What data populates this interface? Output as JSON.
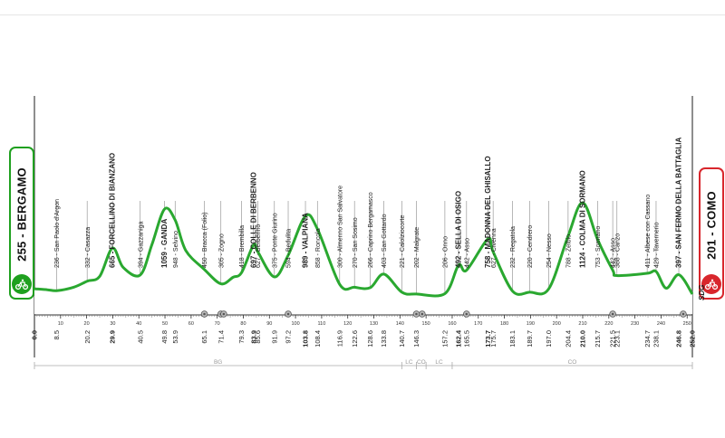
{
  "start": {
    "label": "255 - BERGAMO",
    "icon": "cyclist-icon",
    "color": "#1fa01f"
  },
  "finish": {
    "label": "201 - COMO",
    "icon": "cyclist-icon",
    "color": "#d8262c"
  },
  "brand": "SDG",
  "chart_data": {
    "type": "area",
    "xlim": [
      0,
      252
    ],
    "x_ticks": [
      10,
      20,
      30,
      40,
      50,
      60,
      70,
      80,
      90,
      100,
      110,
      120,
      130,
      140,
      150,
      160,
      170,
      180,
      190,
      200,
      210,
      220,
      230,
      240,
      250
    ],
    "profile": [
      [
        0,
        255
      ],
      [
        5,
        245
      ],
      [
        8.5,
        236
      ],
      [
        15,
        270
      ],
      [
        20.2,
        332
      ],
      [
        25,
        380
      ],
      [
        29.9,
        665
      ],
      [
        34,
        470
      ],
      [
        40.5,
        394
      ],
      [
        45,
        700
      ],
      [
        49.8,
        1059
      ],
      [
        53.9,
        948
      ],
      [
        58,
        640
      ],
      [
        65.1,
        450
      ],
      [
        71.4,
        305
      ],
      [
        76,
        370
      ],
      [
        79.3,
        418
      ],
      [
        83.9,
        697
      ],
      [
        85.6,
        627
      ],
      [
        91.9,
        375
      ],
      [
        97.2,
        594
      ],
      [
        103.8,
        989
      ],
      [
        108.4,
        858
      ],
      [
        116.9,
        300
      ],
      [
        122.6,
        270
      ],
      [
        128.6,
        266
      ],
      [
        133.8,
        403
      ],
      [
        140.7,
        221
      ],
      [
        146.3,
        202
      ],
      [
        157.2,
        206
      ],
      [
        162.4,
        492
      ],
      [
        165.5,
        442
      ],
      [
        173.7,
        758
      ],
      [
        175.7,
        627
      ],
      [
        183.1,
        232
      ],
      [
        189.7,
        220
      ],
      [
        197.0,
        254
      ],
      [
        204.4,
        788
      ],
      [
        210.0,
        1124
      ],
      [
        215.7,
        753
      ],
      [
        221.5,
        442
      ],
      [
        223.1,
        388
      ],
      [
        234.7,
        411
      ],
      [
        238.1,
        429
      ],
      [
        242,
        260
      ],
      [
        246.8,
        397
      ],
      [
        252.0,
        201
      ]
    ],
    "km_labels": [
      {
        "km": "0.0",
        "x": 0,
        "bold": true
      },
      {
        "km": "8.5",
        "x": 8.5
      },
      {
        "km": "20.2",
        "x": 20.2
      },
      {
        "km": "29.9",
        "x": 29.9,
        "bold": true
      },
      {
        "km": "40.5",
        "x": 40.5
      },
      {
        "km": "49.8",
        "x": 49.8
      },
      {
        "km": "53.9",
        "x": 53.9
      },
      {
        "km": "65.1",
        "x": 65.1
      },
      {
        "km": "71.4",
        "x": 71.4
      },
      {
        "km": "79.3",
        "x": 79.3
      },
      {
        "km": "83.9",
        "x": 83.9,
        "bold": true
      },
      {
        "km": "85.6",
        "x": 85.6
      },
      {
        "km": "91.9",
        "x": 91.9
      },
      {
        "km": "97.2",
        "x": 97.2
      },
      {
        "km": "103.8",
        "x": 103.8,
        "bold": true
      },
      {
        "km": "108.4",
        "x": 108.4
      },
      {
        "km": "116.9",
        "x": 116.9
      },
      {
        "km": "122.6",
        "x": 122.6
      },
      {
        "km": "128.6",
        "x": 128.6
      },
      {
        "km": "133.8",
        "x": 133.8
      },
      {
        "km": "140.7",
        "x": 140.7
      },
      {
        "km": "146.3",
        "x": 146.3
      },
      {
        "km": "157.2",
        "x": 157.2
      },
      {
        "km": "162.4",
        "x": 162.4,
        "bold": true
      },
      {
        "km": "165.5",
        "x": 165.5
      },
      {
        "km": "173.7",
        "x": 173.7,
        "bold": true
      },
      {
        "km": "175.7",
        "x": 175.7
      },
      {
        "km": "183.1",
        "x": 183.1
      },
      {
        "km": "189.7",
        "x": 189.7
      },
      {
        "km": "197.0",
        "x": 197.0
      },
      {
        "km": "204.4",
        "x": 204.4
      },
      {
        "km": "210.0",
        "x": 210.0,
        "bold": true
      },
      {
        "km": "215.7",
        "x": 215.7
      },
      {
        "km": "221.5",
        "x": 221.5
      },
      {
        "km": "223.1",
        "x": 223.1
      },
      {
        "km": "234.7",
        "x": 234.7
      },
      {
        "km": "238.1",
        "x": 238.1
      },
      {
        "km": "246.8",
        "x": 246.8,
        "bold": true
      },
      {
        "km": "252.0",
        "x": 252.0,
        "bold": true
      }
    ],
    "waypoints": [
      {
        "x": 8.5,
        "text": "236 - San Paolo d'Argon",
        "bold": false
      },
      {
        "x": 20.2,
        "text": "332 - Casazza",
        "bold": false
      },
      {
        "x": 29.9,
        "text": "665 - FORCELLINO DI BIANZANO",
        "bold": true
      },
      {
        "x": 40.5,
        "text": "394 - Gazzaniga",
        "bold": false
      },
      {
        "x": 49.8,
        "text": "1059 - GANDA",
        "bold": true
      },
      {
        "x": 53.9,
        "text": "948 - Selvino",
        "bold": false
      },
      {
        "x": 65.1,
        "text": "450 - Bracca (Folio)",
        "bold": false
      },
      {
        "x": 71.4,
        "text": "305 - Zogno",
        "bold": false
      },
      {
        "x": 79.3,
        "text": "418 - Brembilla",
        "bold": false
      },
      {
        "x": 83.9,
        "text": "697 - COLLE DI BERBENNO",
        "bold": true
      },
      {
        "x": 85.6,
        "text": "627 - Berbenno",
        "bold": false
      },
      {
        "x": 91.9,
        "text": "375 - Ponte Giurino",
        "bold": false
      },
      {
        "x": 97.2,
        "text": "594 - Bedulita",
        "bold": false
      },
      {
        "x": 103.8,
        "text": "989 - VALPIANA",
        "bold": true
      },
      {
        "x": 108.4,
        "text": "858 - Roncola",
        "bold": false
      },
      {
        "x": 116.9,
        "text": "300 - Almenno San Salvatore",
        "bold": false
      },
      {
        "x": 122.6,
        "text": "270 - San Sosimo",
        "bold": false
      },
      {
        "x": 128.6,
        "text": "266 - Caprino Bergamasco",
        "bold": false
      },
      {
        "x": 133.8,
        "text": "403 - San Gottardo",
        "bold": false
      },
      {
        "x": 140.7,
        "text": "221 - Calolziocorte",
        "bold": false
      },
      {
        "x": 146.3,
        "text": "202 - Malgrate",
        "bold": false
      },
      {
        "x": 157.2,
        "text": "206 - Onno",
        "bold": false
      },
      {
        "x": 162.4,
        "text": "492 - SELLA DI OSIGO",
        "bold": true
      },
      {
        "x": 165.5,
        "text": "442 - Asso",
        "bold": false
      },
      {
        "x": 173.7,
        "text": "758 - MADONNA DEL GHISALLO",
        "bold": true
      },
      {
        "x": 175.7,
        "text": "627 - Civenna",
        "bold": false
      },
      {
        "x": 183.1,
        "text": "232 - Regatola",
        "bold": false
      },
      {
        "x": 189.7,
        "text": "220 - Cendrero",
        "bold": false
      },
      {
        "x": 197.0,
        "text": "254 - Nesso",
        "bold": false
      },
      {
        "x": 204.4,
        "text": "788 - Zelbio",
        "bold": false
      },
      {
        "x": 210.0,
        "text": "1124 - COLMA DI SORMANO",
        "bold": true
      },
      {
        "x": 215.7,
        "text": "753 - Sormano",
        "bold": false
      },
      {
        "x": 221.5,
        "text": "442 - Asso",
        "bold": false
      },
      {
        "x": 223.1,
        "text": "388 - Canzo",
        "bold": false
      },
      {
        "x": 234.7,
        "text": "411 - Albese con Cassano",
        "bold": false
      },
      {
        "x": 238.1,
        "text": "429 - Tavernerio",
        "bold": false
      },
      {
        "x": 246.8,
        "text": "397 - SAN FERMO DELLA BATTAGLIA",
        "bold": true
      }
    ],
    "service_markers": [
      65.1,
      71.4,
      72.5,
      97.2,
      146.3,
      148.5,
      165.5,
      221.5,
      248.5
    ],
    "provinces": [
      {
        "label": "BG",
        "from": 0,
        "to": 140.7
      },
      {
        "label": "LC",
        "from": 140.7,
        "to": 146.3
      },
      {
        "label": "CO",
        "from": 146.3,
        "to": 150
      },
      {
        "label": "LC",
        "from": 150,
        "to": 160
      },
      {
        "label": "CO",
        "from": 160,
        "to": 252
      }
    ],
    "colors": {
      "line": "#2aa830",
      "fill": "#ffffff",
      "text": "#222222"
    }
  }
}
